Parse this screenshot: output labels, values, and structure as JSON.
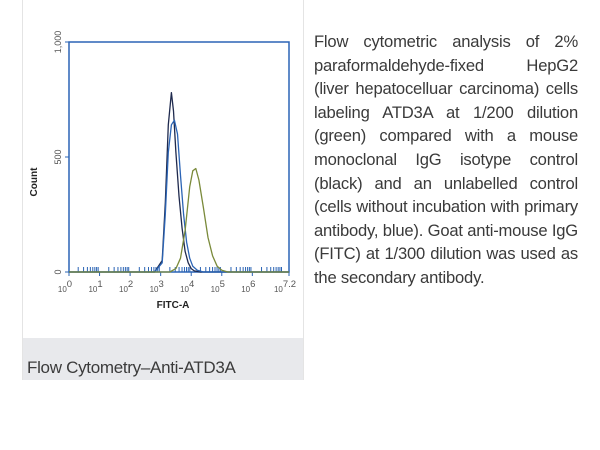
{
  "caption": "Flow Cytometry–Anti-ATD3A",
  "description": "Flow cytometric analysis of 2% paraformaldehyde-fixed HepG2 (liver hepatocelluar carcinoma) cells labeling ATD3A at 1/200 dilution (green) compared with a mouse monoclonal IgG isotype control (black) and an unlabelled control (cells without incubation with primary antibody, blue). Goat anti-mouse IgG (FITC) at 1/300 dilution was used as the secondary antibody.",
  "chart_data": {
    "type": "line",
    "title": "",
    "xlabel": "FITC-A",
    "ylabel": "Count",
    "x_scale": "log",
    "xlim": [
      0,
      7.2
    ],
    "ylim": [
      0,
      1000
    ],
    "x_ticks": [
      {
        "exp": "0",
        "pos": 0
      },
      {
        "exp": "1",
        "pos": 1
      },
      {
        "exp": "2",
        "pos": 2
      },
      {
        "exp": "3",
        "pos": 3
      },
      {
        "exp": "4",
        "pos": 4
      },
      {
        "exp": "5",
        "pos": 5
      },
      {
        "exp": "6",
        "pos": 6
      },
      {
        "exp": "7.2",
        "pos": 7.2
      }
    ],
    "x_tick_base": "10",
    "y_ticks": [
      {
        "label": "0",
        "value": 0
      },
      {
        "label": "500",
        "value": 500
      },
      {
        "label": "1,000",
        "value": 1000
      }
    ],
    "grid": false,
    "series": [
      {
        "color": "#1f2a4e",
        "x": [
          0,
          2.8,
          3.05,
          3.15,
          3.25,
          3.35,
          3.42,
          3.5,
          3.6,
          3.7,
          3.8,
          3.9,
          4.0,
          4.1,
          4.3,
          7.2
        ],
        "y": [
          0,
          0,
          50,
          300,
          640,
          780,
          700,
          520,
          330,
          190,
          90,
          40,
          15,
          5,
          0,
          0
        ]
      },
      {
        "color": "#2b64b5",
        "x": [
          0,
          2.8,
          3.05,
          3.15,
          3.25,
          3.35,
          3.45,
          3.55,
          3.65,
          3.75,
          3.85,
          3.95,
          4.05,
          4.2,
          4.4,
          7.2
        ],
        "y": [
          0,
          0,
          40,
          250,
          520,
          640,
          660,
          600,
          420,
          250,
          130,
          60,
          25,
          8,
          0,
          0
        ]
      },
      {
        "color": "#7a8a3a",
        "x": [
          0,
          3.3,
          3.5,
          3.65,
          3.8,
          3.95,
          4.05,
          4.15,
          4.25,
          4.4,
          4.55,
          4.7,
          4.85,
          5.0,
          5.2,
          7.2
        ],
        "y": [
          0,
          0,
          15,
          60,
          180,
          370,
          440,
          450,
          400,
          280,
          150,
          70,
          25,
          8,
          0,
          0
        ]
      }
    ]
  },
  "colors": {
    "axis": "#2b64b5",
    "caption_bg": "#e8e9ec"
  }
}
